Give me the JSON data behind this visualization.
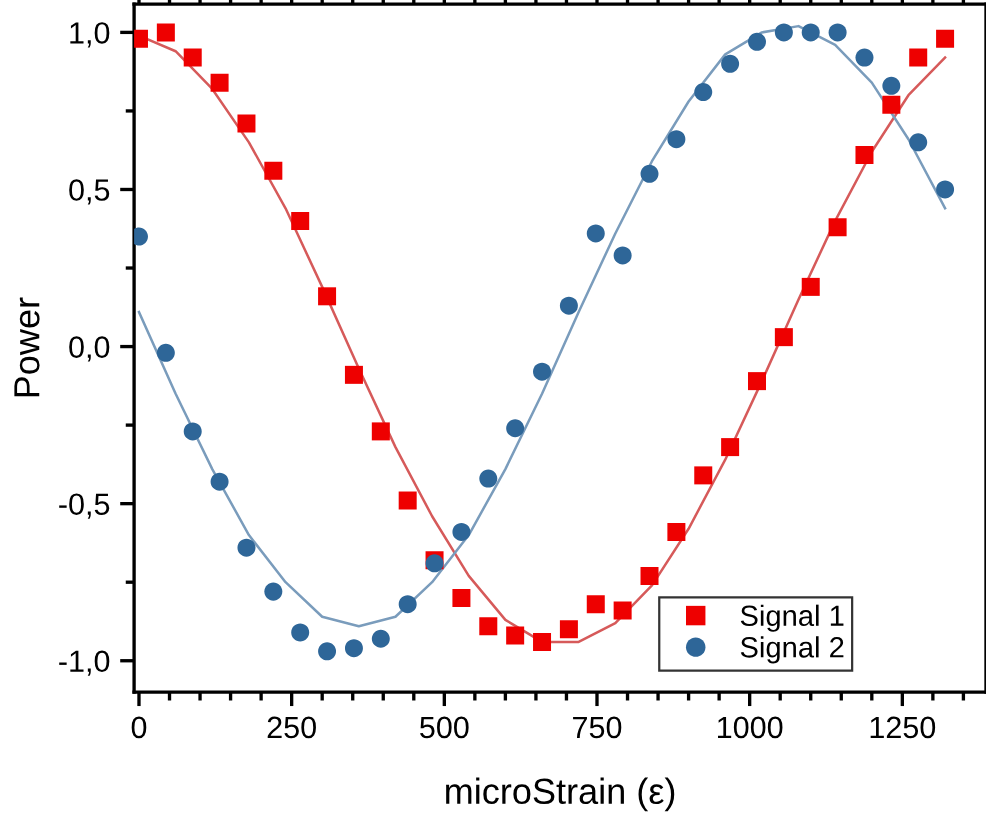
{
  "chart_data": {
    "type": "scatter",
    "xlabel": "microStrain (ε)",
    "ylabel": "Power",
    "xlim": [
      -8,
      1387
    ],
    "ylim": [
      -1.1,
      1.09
    ],
    "xticks": [
      0,
      250,
      500,
      750,
      1000,
      1250
    ],
    "yticks": [
      {
        "value": -1,
        "label": "-1,0"
      },
      {
        "value": -0.5,
        "label": "-0,5"
      },
      {
        "value": 0,
        "label": "0,0"
      },
      {
        "value": 0.5,
        "label": "0,5"
      },
      {
        "value": 1,
        "label": "1,0"
      }
    ],
    "grid": false,
    "legend": "bottom right",
    "series": [
      {
        "name": "Signal 1",
        "marker": "square",
        "color": "#ee0000",
        "x": [
          0,
          44,
          88,
          132,
          176,
          220,
          264,
          308,
          352,
          396,
          440,
          484,
          528,
          572,
          616,
          660,
          704,
          748,
          792,
          836,
          880,
          924,
          968,
          1012,
          1056,
          1100,
          1144,
          1188,
          1232,
          1276,
          1320
        ],
        "values": [
          0.98,
          1.0,
          0.92,
          0.84,
          0.71,
          0.56,
          0.4,
          0.16,
          -0.09,
          -0.27,
          -0.49,
          -0.68,
          -0.8,
          -0.89,
          -0.92,
          -0.94,
          -0.9,
          -0.82,
          -0.84,
          -0.73,
          -0.59,
          -0.41,
          -0.32,
          -0.11,
          0.03,
          0.19,
          0.38,
          0.61,
          0.77,
          0.92,
          0.98
        ]
      },
      {
        "name": "Signal 2",
        "marker": "circle",
        "color": "#2e6698",
        "x": [
          0,
          44,
          88,
          132,
          176,
          220,
          264,
          308,
          352,
          396,
          440,
          484,
          528,
          572,
          616,
          660,
          704,
          748,
          792,
          836,
          880,
          924,
          968,
          1012,
          1056,
          1100,
          1144,
          1188,
          1232,
          1276,
          1320
        ],
        "values": [
          0.35,
          -0.02,
          -0.27,
          -0.43,
          -0.64,
          -0.78,
          -0.91,
          -0.97,
          -0.96,
          -0.93,
          -0.82,
          -0.69,
          -0.59,
          -0.42,
          -0.26,
          -0.08,
          0.13,
          0.36,
          0.29,
          0.55,
          0.66,
          0.81,
          0.9,
          0.97,
          1.0,
          1.0,
          1.0,
          0.92,
          0.83,
          0.65,
          0.5
        ]
      },
      {
        "type": "line",
        "color": "#d65a5a",
        "line_style": "solid",
        "x": [
          0,
          60,
          120,
          180,
          240,
          300,
          360,
          420,
          480,
          540,
          600,
          660,
          720,
          780,
          840,
          900,
          960,
          1020,
          1080,
          1140,
          1200,
          1260,
          1320
        ],
        "values": [
          0.99,
          0.94,
          0.82,
          0.65,
          0.44,
          0.19,
          -0.07,
          -0.32,
          -0.54,
          -0.73,
          -0.87,
          -0.94,
          -0.94,
          -0.88,
          -0.76,
          -0.58,
          -0.36,
          -0.11,
          0.15,
          0.4,
          0.62,
          0.8,
          0.92
        ]
      },
      {
        "type": "line",
        "color": "#7a9cbc",
        "line_style": "solid",
        "x": [
          0,
          60,
          120,
          180,
          240,
          300,
          360,
          420,
          480,
          540,
          600,
          660,
          720,
          780,
          840,
          900,
          960,
          1020,
          1080,
          1140,
          1200,
          1260,
          1320
        ],
        "values": [
          0.11,
          -0.15,
          -0.39,
          -0.6,
          -0.75,
          -0.86,
          -0.89,
          -0.86,
          -0.75,
          -0.6,
          -0.39,
          -0.15,
          0.11,
          0.36,
          0.59,
          0.78,
          0.93,
          1.0,
          1.02,
          0.96,
          0.84,
          0.66,
          0.44
        ]
      }
    ]
  }
}
